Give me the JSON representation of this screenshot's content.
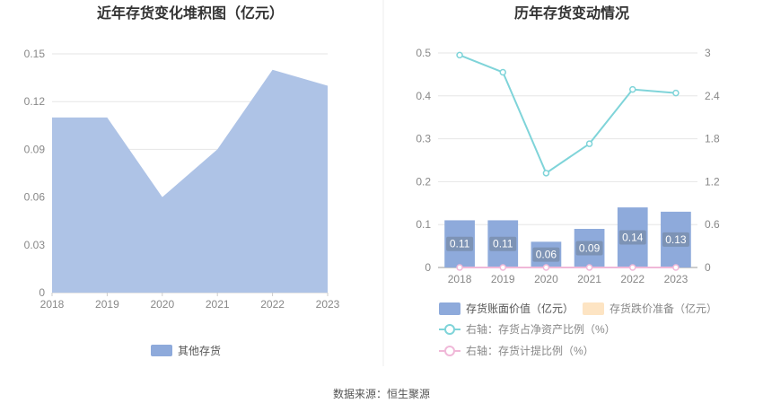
{
  "source_text": "数据来源：恒生聚源",
  "chart_data": [
    {
      "type": "area",
      "title": "近年存货变化堆积图（亿元）",
      "x": [
        "2018",
        "2019",
        "2020",
        "2021",
        "2022",
        "2023"
      ],
      "series": [
        {
          "name": "其他存货",
          "values": [
            0.11,
            0.11,
            0.06,
            0.09,
            0.14,
            0.13
          ],
          "color": "#aec3e6"
        }
      ],
      "yticks": [
        "0",
        "0.03",
        "0.06",
        "0.09",
        "0.12",
        "0.15"
      ],
      "ylim": [
        0,
        0.15
      ],
      "grid": true,
      "legend_position": "bottom"
    },
    {
      "type": "bar",
      "title": "历年存货变动情况",
      "x": [
        "2018",
        "2019",
        "2020",
        "2021",
        "2022",
        "2023"
      ],
      "series": [
        {
          "name": "存货账面价值（亿元）",
          "values": [
            0.11,
            0.11,
            0.06,
            0.09,
            0.14,
            0.13
          ],
          "labels": [
            "0.11",
            "0.11",
            "0.06",
            "0.09",
            "0.14",
            "0.13"
          ],
          "color": "#8eaadb",
          "axis": "left"
        },
        {
          "name": "存货跌价准备（亿元）",
          "values": [
            0,
            0,
            0,
            0,
            0,
            0
          ],
          "color": "#fde4c3",
          "axis": "left"
        },
        {
          "name": "右轴：存货占净资产比例（%）",
          "values": [
            2.97,
            2.73,
            1.32,
            1.73,
            2.49,
            2.44
          ],
          "color": "#7fd4d9",
          "type": "line",
          "axis": "right"
        },
        {
          "name": "右轴：存货计提比例（%）",
          "values": [
            0,
            0,
            0,
            0,
            0,
            0
          ],
          "color": "#f0b8d8",
          "type": "line",
          "axis": "right"
        }
      ],
      "yticks_left": [
        "0",
        "0.1",
        "0.2",
        "0.3",
        "0.4",
        "0.5"
      ],
      "ylim_left": [
        0,
        0.5
      ],
      "yticks_right": [
        "0",
        "0.6",
        "1.2",
        "1.8",
        "2.4",
        "3"
      ],
      "ylim_right": [
        0,
        3
      ],
      "grid": true,
      "legend_position": "bottom"
    }
  ]
}
